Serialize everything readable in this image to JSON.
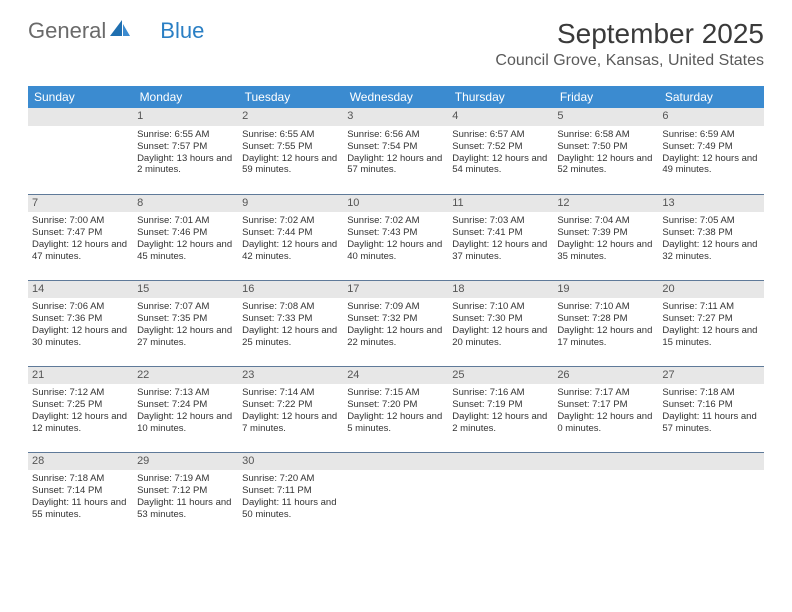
{
  "logo": {
    "text1": "General",
    "text2": "Blue"
  },
  "title": "September 2025",
  "location": "Council Grove, Kansas, United States",
  "colors": {
    "header_bg": "#3b8bd0",
    "header_text": "#ffffff",
    "daynum_bg": "#e7e7e7",
    "rule": "#5f7a99",
    "logo_gray": "#6a6a6a",
    "logo_blue": "#2a7fc4"
  },
  "weekdays": [
    "Sunday",
    "Monday",
    "Tuesday",
    "Wednesday",
    "Thursday",
    "Friday",
    "Saturday"
  ],
  "weeks": [
    [
      {
        "day": "",
        "lines": []
      },
      {
        "day": "1",
        "lines": [
          "Sunrise: 6:55 AM",
          "Sunset: 7:57 PM",
          "Daylight: 13 hours and 2 minutes."
        ]
      },
      {
        "day": "2",
        "lines": [
          "Sunrise: 6:55 AM",
          "Sunset: 7:55 PM",
          "Daylight: 12 hours and 59 minutes."
        ]
      },
      {
        "day": "3",
        "lines": [
          "Sunrise: 6:56 AM",
          "Sunset: 7:54 PM",
          "Daylight: 12 hours and 57 minutes."
        ]
      },
      {
        "day": "4",
        "lines": [
          "Sunrise: 6:57 AM",
          "Sunset: 7:52 PM",
          "Daylight: 12 hours and 54 minutes."
        ]
      },
      {
        "day": "5",
        "lines": [
          "Sunrise: 6:58 AM",
          "Sunset: 7:50 PM",
          "Daylight: 12 hours and 52 minutes."
        ]
      },
      {
        "day": "6",
        "lines": [
          "Sunrise: 6:59 AM",
          "Sunset: 7:49 PM",
          "Daylight: 12 hours and 49 minutes."
        ]
      }
    ],
    [
      {
        "day": "7",
        "lines": [
          "Sunrise: 7:00 AM",
          "Sunset: 7:47 PM",
          "Daylight: 12 hours and 47 minutes."
        ]
      },
      {
        "day": "8",
        "lines": [
          "Sunrise: 7:01 AM",
          "Sunset: 7:46 PM",
          "Daylight: 12 hours and 45 minutes."
        ]
      },
      {
        "day": "9",
        "lines": [
          "Sunrise: 7:02 AM",
          "Sunset: 7:44 PM",
          "Daylight: 12 hours and 42 minutes."
        ]
      },
      {
        "day": "10",
        "lines": [
          "Sunrise: 7:02 AM",
          "Sunset: 7:43 PM",
          "Daylight: 12 hours and 40 minutes."
        ]
      },
      {
        "day": "11",
        "lines": [
          "Sunrise: 7:03 AM",
          "Sunset: 7:41 PM",
          "Daylight: 12 hours and 37 minutes."
        ]
      },
      {
        "day": "12",
        "lines": [
          "Sunrise: 7:04 AM",
          "Sunset: 7:39 PM",
          "Daylight: 12 hours and 35 minutes."
        ]
      },
      {
        "day": "13",
        "lines": [
          "Sunrise: 7:05 AM",
          "Sunset: 7:38 PM",
          "Daylight: 12 hours and 32 minutes."
        ]
      }
    ],
    [
      {
        "day": "14",
        "lines": [
          "Sunrise: 7:06 AM",
          "Sunset: 7:36 PM",
          "Daylight: 12 hours and 30 minutes."
        ]
      },
      {
        "day": "15",
        "lines": [
          "Sunrise: 7:07 AM",
          "Sunset: 7:35 PM",
          "Daylight: 12 hours and 27 minutes."
        ]
      },
      {
        "day": "16",
        "lines": [
          "Sunrise: 7:08 AM",
          "Sunset: 7:33 PM",
          "Daylight: 12 hours and 25 minutes."
        ]
      },
      {
        "day": "17",
        "lines": [
          "Sunrise: 7:09 AM",
          "Sunset: 7:32 PM",
          "Daylight: 12 hours and 22 minutes."
        ]
      },
      {
        "day": "18",
        "lines": [
          "Sunrise: 7:10 AM",
          "Sunset: 7:30 PM",
          "Daylight: 12 hours and 20 minutes."
        ]
      },
      {
        "day": "19",
        "lines": [
          "Sunrise: 7:10 AM",
          "Sunset: 7:28 PM",
          "Daylight: 12 hours and 17 minutes."
        ]
      },
      {
        "day": "20",
        "lines": [
          "Sunrise: 7:11 AM",
          "Sunset: 7:27 PM",
          "Daylight: 12 hours and 15 minutes."
        ]
      }
    ],
    [
      {
        "day": "21",
        "lines": [
          "Sunrise: 7:12 AM",
          "Sunset: 7:25 PM",
          "Daylight: 12 hours and 12 minutes."
        ]
      },
      {
        "day": "22",
        "lines": [
          "Sunrise: 7:13 AM",
          "Sunset: 7:24 PM",
          "Daylight: 12 hours and 10 minutes."
        ]
      },
      {
        "day": "23",
        "lines": [
          "Sunrise: 7:14 AM",
          "Sunset: 7:22 PM",
          "Daylight: 12 hours and 7 minutes."
        ]
      },
      {
        "day": "24",
        "lines": [
          "Sunrise: 7:15 AM",
          "Sunset: 7:20 PM",
          "Daylight: 12 hours and 5 minutes."
        ]
      },
      {
        "day": "25",
        "lines": [
          "Sunrise: 7:16 AM",
          "Sunset: 7:19 PM",
          "Daylight: 12 hours and 2 minutes."
        ]
      },
      {
        "day": "26",
        "lines": [
          "Sunrise: 7:17 AM",
          "Sunset: 7:17 PM",
          "Daylight: 12 hours and 0 minutes."
        ]
      },
      {
        "day": "27",
        "lines": [
          "Sunrise: 7:18 AM",
          "Sunset: 7:16 PM",
          "Daylight: 11 hours and 57 minutes."
        ]
      }
    ],
    [
      {
        "day": "28",
        "lines": [
          "Sunrise: 7:18 AM",
          "Sunset: 7:14 PM",
          "Daylight: 11 hours and 55 minutes."
        ]
      },
      {
        "day": "29",
        "lines": [
          "Sunrise: 7:19 AM",
          "Sunset: 7:12 PM",
          "Daylight: 11 hours and 53 minutes."
        ]
      },
      {
        "day": "30",
        "lines": [
          "Sunrise: 7:20 AM",
          "Sunset: 7:11 PM",
          "Daylight: 11 hours and 50 minutes."
        ]
      },
      {
        "day": "",
        "lines": []
      },
      {
        "day": "",
        "lines": []
      },
      {
        "day": "",
        "lines": []
      },
      {
        "day": "",
        "lines": []
      }
    ]
  ]
}
